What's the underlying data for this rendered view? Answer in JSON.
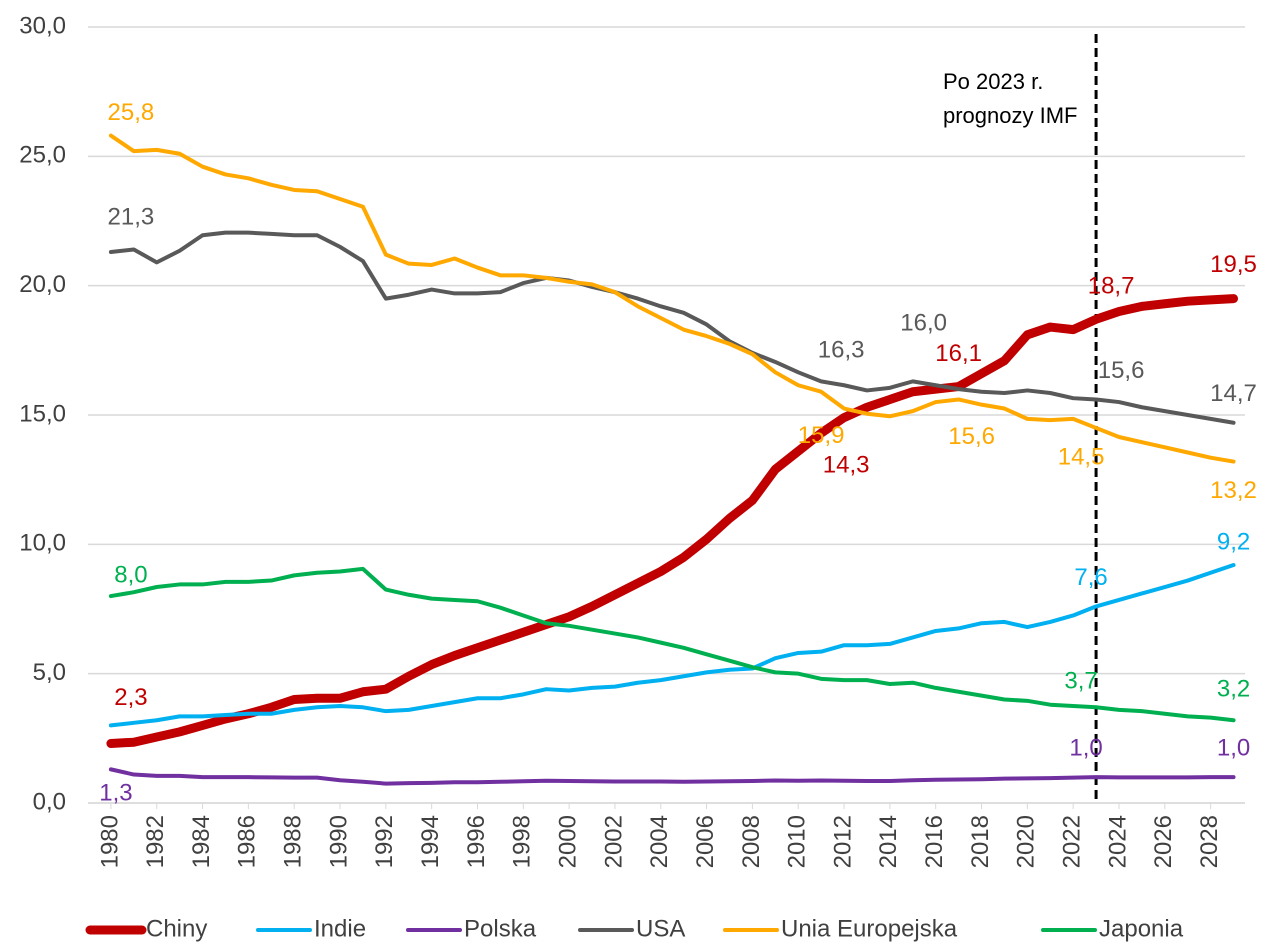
{
  "chart_data": {
    "type": "line",
    "annotation": [
      "Po 2023 r.",
      "prognozy IMF"
    ],
    "forecast_start": 2023,
    "x": [
      1980,
      1981,
      1982,
      1983,
      1984,
      1985,
      1986,
      1987,
      1988,
      1989,
      1990,
      1991,
      1992,
      1993,
      1994,
      1995,
      1996,
      1997,
      1998,
      1999,
      2000,
      2001,
      2002,
      2003,
      2004,
      2005,
      2006,
      2007,
      2008,
      2009,
      2010,
      2011,
      2012,
      2013,
      2014,
      2015,
      2016,
      2017,
      2018,
      2019,
      2020,
      2021,
      2022,
      2023,
      2024,
      2025,
      2026,
      2027,
      2028,
      2029
    ],
    "xlim": [
      1979,
      2029.5
    ],
    "xticks": [
      1980,
      1982,
      1984,
      1986,
      1988,
      1990,
      1992,
      1994,
      1996,
      1998,
      2000,
      2002,
      2004,
      2006,
      2008,
      2010,
      2012,
      2014,
      2016,
      2018,
      2020,
      2022,
      2024,
      2026,
      2028
    ],
    "ylim": [
      0,
      30
    ],
    "yticks": [
      {
        "value": 0,
        "label": "0,0"
      },
      {
        "value": 5,
        "label": "5,0"
      },
      {
        "value": 10,
        "label": "10,0"
      },
      {
        "value": 15,
        "label": "15,0"
      },
      {
        "value": 20,
        "label": "20,0"
      },
      {
        "value": 25,
        "label": "25,0"
      },
      {
        "value": 30,
        "label": "30,0"
      }
    ],
    "grid": true,
    "legend": "bottom",
    "series": [
      {
        "name": "Chiny",
        "color": "#c00000",
        "width": 9,
        "values": [
          2.3,
          2.35,
          2.55,
          2.75,
          3.0,
          3.25,
          3.45,
          3.7,
          4.0,
          4.05,
          4.05,
          4.3,
          4.4,
          4.9,
          5.35,
          5.7,
          6.0,
          6.3,
          6.6,
          6.9,
          7.2,
          7.6,
          8.05,
          8.5,
          8.95,
          9.5,
          10.2,
          11.0,
          11.7,
          12.9,
          13.6,
          14.3,
          14.9,
          15.3,
          15.6,
          15.9,
          16.0,
          16.1,
          16.6,
          17.1,
          18.1,
          18.4,
          18.3,
          18.7,
          19.0,
          19.2,
          19.3,
          19.4,
          19.45,
          19.5
        ],
        "value_labels": [
          "2,3",
          null,
          null,
          null,
          null,
          null,
          null,
          null,
          null,
          null,
          null,
          null,
          null,
          null,
          null,
          null,
          null,
          null,
          null,
          null,
          null,
          null,
          null,
          null,
          null,
          null,
          null,
          null,
          null,
          null,
          null,
          "14,3",
          null,
          null,
          null,
          null,
          null,
          "16,1",
          null,
          null,
          null,
          null,
          null,
          "18,7",
          null,
          null,
          null,
          null,
          null,
          "19,5"
        ]
      },
      {
        "name": "Indie",
        "color": "#00b0f0",
        "width": 4,
        "values": [
          3.0,
          3.1,
          3.2,
          3.35,
          3.35,
          3.4,
          3.45,
          3.45,
          3.6,
          3.7,
          3.75,
          3.7,
          3.55,
          3.6,
          3.75,
          3.9,
          4.05,
          4.05,
          4.2,
          4.4,
          4.35,
          4.45,
          4.5,
          4.65,
          4.75,
          4.9,
          5.05,
          5.15,
          5.2,
          5.6,
          5.8,
          5.85,
          6.1,
          6.1,
          6.15,
          6.4,
          6.65,
          6.75,
          6.95,
          7.0,
          6.8,
          7.0,
          7.25,
          7.6,
          7.85,
          8.1,
          8.35,
          8.6,
          8.9,
          9.2
        ],
        "value_labels": [
          null,
          null,
          null,
          null,
          null,
          null,
          null,
          null,
          null,
          null,
          null,
          null,
          null,
          null,
          null,
          null,
          null,
          null,
          null,
          null,
          null,
          null,
          null,
          null,
          null,
          null,
          null,
          null,
          null,
          null,
          null,
          null,
          null,
          null,
          null,
          null,
          null,
          null,
          null,
          null,
          null,
          null,
          null,
          "7,6",
          null,
          null,
          null,
          null,
          null,
          "9,2"
        ]
      },
      {
        "name": "Polska",
        "color": "#7030a0",
        "width": 4,
        "values": [
          1.3,
          1.1,
          1.05,
          1.05,
          1.0,
          1.0,
          1.0,
          0.99,
          0.98,
          0.98,
          0.88,
          0.82,
          0.75,
          0.77,
          0.78,
          0.8,
          0.8,
          0.82,
          0.84,
          0.86,
          0.85,
          0.84,
          0.83,
          0.83,
          0.83,
          0.82,
          0.83,
          0.84,
          0.85,
          0.87,
          0.86,
          0.87,
          0.86,
          0.85,
          0.85,
          0.88,
          0.9,
          0.91,
          0.92,
          0.94,
          0.95,
          0.96,
          0.98,
          1.0,
          0.99,
          0.99,
          0.99,
          0.99,
          1.0,
          1.0
        ],
        "value_labels": [
          "1,3",
          null,
          null,
          null,
          null,
          null,
          null,
          null,
          null,
          null,
          null,
          null,
          null,
          null,
          null,
          null,
          null,
          null,
          null,
          null,
          null,
          null,
          null,
          null,
          null,
          null,
          null,
          null,
          null,
          null,
          null,
          null,
          null,
          null,
          null,
          null,
          null,
          null,
          null,
          null,
          null,
          null,
          null,
          "1,0",
          null,
          null,
          null,
          null,
          null,
          "1,0"
        ]
      },
      {
        "name": "USA",
        "color": "#595959",
        "width": 4,
        "values": [
          21.3,
          21.4,
          20.9,
          21.35,
          21.95,
          22.05,
          22.05,
          22.0,
          21.95,
          21.95,
          21.5,
          20.95,
          19.5,
          19.65,
          19.85,
          19.7,
          19.7,
          19.75,
          20.1,
          20.3,
          20.2,
          19.95,
          19.75,
          19.5,
          19.2,
          18.95,
          18.5,
          17.85,
          17.4,
          17.05,
          16.65,
          16.3,
          16.15,
          15.95,
          16.05,
          16.3,
          16.15,
          16.0,
          15.9,
          15.85,
          15.95,
          15.85,
          15.65,
          15.6,
          15.5,
          15.3,
          15.15,
          15.0,
          14.85,
          14.7
        ],
        "value_labels": [
          "21,3",
          null,
          null,
          null,
          null,
          null,
          null,
          null,
          null,
          null,
          null,
          null,
          null,
          null,
          null,
          null,
          null,
          null,
          null,
          null,
          null,
          null,
          null,
          null,
          null,
          null,
          null,
          null,
          null,
          null,
          null,
          "16,3",
          null,
          null,
          null,
          null,
          null,
          "16,0",
          null,
          null,
          null,
          null,
          null,
          "15,6",
          null,
          null,
          null,
          null,
          null,
          "14,7"
        ]
      },
      {
        "name": "Unia Europejska",
        "color": "#ffa800",
        "width": 4,
        "values": [
          25.8,
          25.2,
          25.25,
          25.1,
          24.6,
          24.3,
          24.15,
          23.9,
          23.7,
          23.65,
          23.35,
          23.05,
          21.2,
          20.85,
          20.8,
          21.05,
          20.7,
          20.4,
          20.4,
          20.3,
          20.15,
          20.05,
          19.75,
          19.2,
          18.75,
          18.3,
          18.05,
          17.75,
          17.35,
          16.65,
          16.15,
          15.9,
          15.25,
          15.05,
          14.95,
          15.15,
          15.5,
          15.6,
          15.4,
          15.25,
          14.85,
          14.8,
          14.85,
          14.5,
          14.15,
          13.95,
          13.75,
          13.55,
          13.35,
          13.2
        ],
        "value_labels": [
          "25,8",
          null,
          null,
          null,
          null,
          null,
          null,
          null,
          null,
          null,
          null,
          null,
          null,
          null,
          null,
          null,
          null,
          null,
          null,
          null,
          null,
          null,
          null,
          null,
          null,
          null,
          null,
          null,
          null,
          null,
          null,
          "15,9",
          null,
          null,
          null,
          null,
          null,
          "15,6",
          null,
          null,
          null,
          null,
          null,
          "14,5",
          null,
          null,
          null,
          null,
          null,
          "13,2"
        ]
      },
      {
        "name": "Japonia",
        "color": "#00b050",
        "width": 4,
        "values": [
          8.0,
          8.15,
          8.35,
          8.45,
          8.45,
          8.55,
          8.55,
          8.6,
          8.8,
          8.9,
          8.95,
          9.05,
          8.25,
          8.05,
          7.9,
          7.85,
          7.8,
          7.55,
          7.25,
          6.95,
          6.85,
          6.7,
          6.55,
          6.4,
          6.2,
          6.0,
          5.75,
          5.5,
          5.25,
          5.05,
          5.0,
          4.8,
          4.75,
          4.75,
          4.6,
          4.65,
          4.45,
          4.3,
          4.15,
          4.0,
          3.95,
          3.8,
          3.75,
          3.7,
          3.6,
          3.55,
          3.45,
          3.35,
          3.3,
          3.2
        ],
        "value_labels": [
          "8,0",
          null,
          null,
          null,
          null,
          null,
          null,
          null,
          null,
          null,
          null,
          null,
          null,
          null,
          null,
          null,
          null,
          null,
          null,
          null,
          null,
          null,
          null,
          null,
          null,
          null,
          null,
          null,
          null,
          null,
          null,
          null,
          null,
          null,
          null,
          null,
          null,
          null,
          null,
          null,
          null,
          null,
          null,
          "3,7",
          null,
          null,
          null,
          null,
          null,
          "3,2"
        ]
      }
    ]
  }
}
